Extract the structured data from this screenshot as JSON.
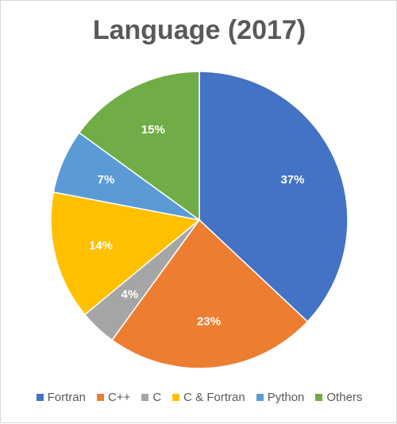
{
  "chart_data": {
    "type": "pie",
    "title": "Language (2017)",
    "categories": [
      "Fortran",
      "C++",
      "C",
      "C & Fortran",
      "Python",
      "Others"
    ],
    "values": [
      37,
      23,
      4,
      14,
      7,
      15
    ],
    "labels": [
      "37%",
      "23%",
      "4%",
      "14%",
      "7%",
      "15%"
    ],
    "colors": [
      "#4472C4",
      "#ED7D31",
      "#A5A5A5",
      "#FFC000",
      "#5B9BD5",
      "#70AD47"
    ],
    "legend_position": "bottom"
  }
}
